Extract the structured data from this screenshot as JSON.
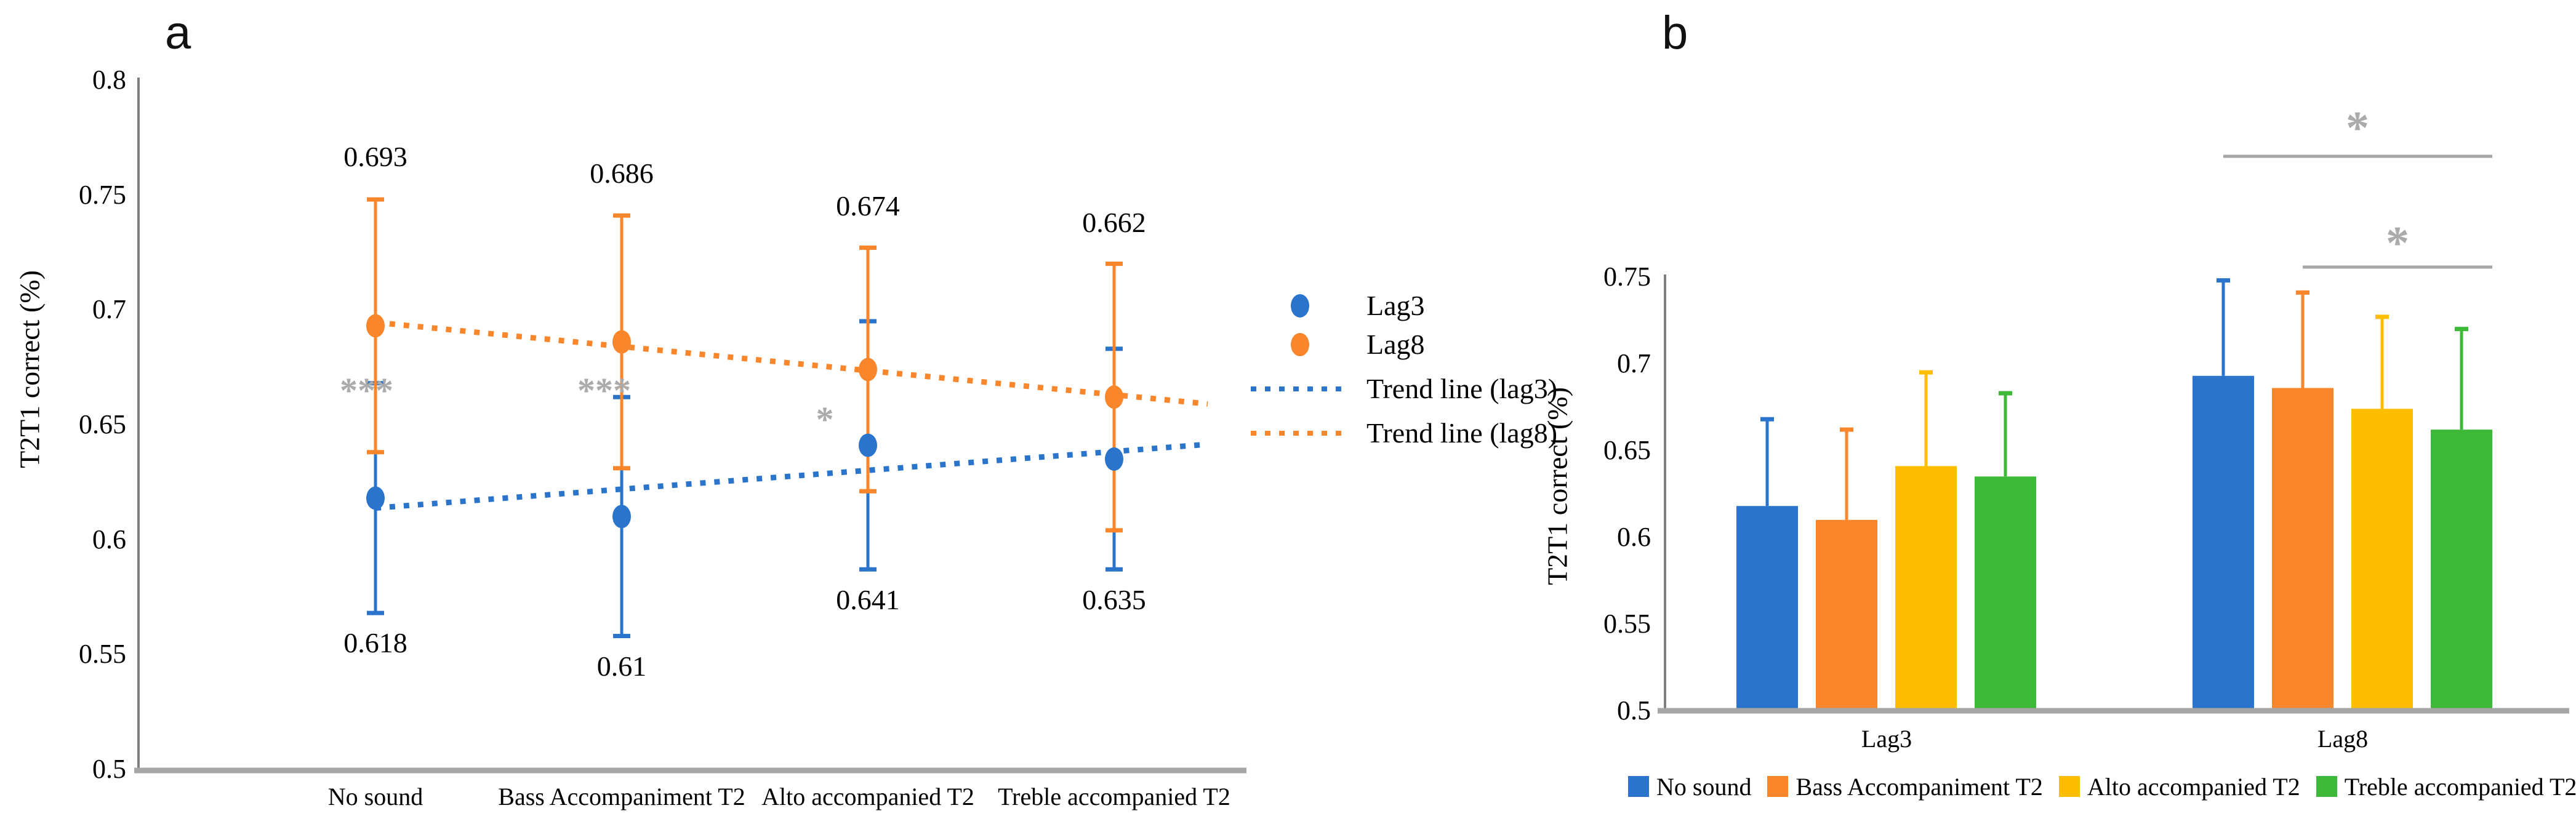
{
  "colors": {
    "blue": "#2A74CB",
    "orange": "#F9862B",
    "yellow": "#FFBD00",
    "green": "#3EB838",
    "significance_gray": "#ABABAB",
    "axis_dark": "#7F7F7F",
    "axis_light": "#A6A6A6"
  },
  "chart_data": [
    {
      "id": "a",
      "type": "scatter",
      "panel_label": "a",
      "ylabel": "T2T1 correct (%)",
      "ylim": [
        0.5,
        0.8
      ],
      "yticks": [
        "0.8",
        "0.75",
        "0.7",
        "0.65",
        "0.6",
        "0.55",
        "0.5"
      ],
      "grid": false,
      "legend_position": "right",
      "categories": [
        "No sound",
        "Bass Accompaniment T2",
        "Alto accompanied T2",
        "Treble accompanied T2"
      ],
      "series": [
        {
          "name": "Lag3",
          "color_key": "blue",
          "values": [
            0.618,
            0.61,
            0.641,
            0.635
          ],
          "errors": [
            0.05,
            0.052,
            0.054,
            0.048
          ],
          "labels": [
            "0.618",
            "0.61",
            "0.641",
            "0.635"
          ]
        },
        {
          "name": "Lag8",
          "color_key": "orange",
          "values": [
            0.693,
            0.686,
            0.674,
            0.662
          ],
          "errors": [
            0.055,
            0.055,
            0.053,
            0.058
          ],
          "labels": [
            "0.693",
            "0.686",
            "0.674",
            "0.662"
          ]
        }
      ],
      "trend_lines": [
        {
          "name": "Trend line (lag3)",
          "color_key": "blue",
          "fit_of_series": "Lag3"
        },
        {
          "name": "Trend line (lag8)",
          "color_key": "orange",
          "fit_of_series": "Lag8"
        }
      ],
      "significance": [
        {
          "text": "***",
          "category": "No sound"
        },
        {
          "text": "***",
          "category": "Bass Accompaniment T2"
        },
        {
          "text": "*",
          "category": "Alto accompanied T2"
        }
      ]
    },
    {
      "id": "b",
      "type": "bar",
      "panel_label": "b",
      "ylabel": "T2T1 correct (%)",
      "ylim": [
        0.5,
        0.75
      ],
      "yticks": [
        "0.75",
        "0.7",
        "0.65",
        "0.6",
        "0.55",
        "0.5"
      ],
      "grid": false,
      "legend_position": "bottom",
      "categories": [
        "Lag3",
        "Lag8"
      ],
      "series": [
        {
          "name": "No sound",
          "color_key": "blue",
          "values": [
            0.618,
            0.693
          ],
          "errors_up": [
            0.05,
            0.055
          ]
        },
        {
          "name": "Bass Accompaniment T2",
          "color_key": "orange",
          "values": [
            0.61,
            0.686
          ],
          "errors_up": [
            0.052,
            0.055
          ]
        },
        {
          "name": "Alto accompanied T2",
          "color_key": "yellow",
          "values": [
            0.641,
            0.674
          ],
          "errors_up": [
            0.054,
            0.053
          ]
        },
        {
          "name": "Treble accompanied T2",
          "color_key": "green",
          "values": [
            0.635,
            0.662
          ],
          "errors_up": [
            0.048,
            0.058
          ]
        }
      ],
      "significance": [
        {
          "text": "*",
          "group": "Lag8",
          "from_series": 0,
          "to_series": 3
        },
        {
          "text": "*",
          "group": "Lag8",
          "from_series": 1,
          "to_series": 3
        }
      ]
    }
  ]
}
